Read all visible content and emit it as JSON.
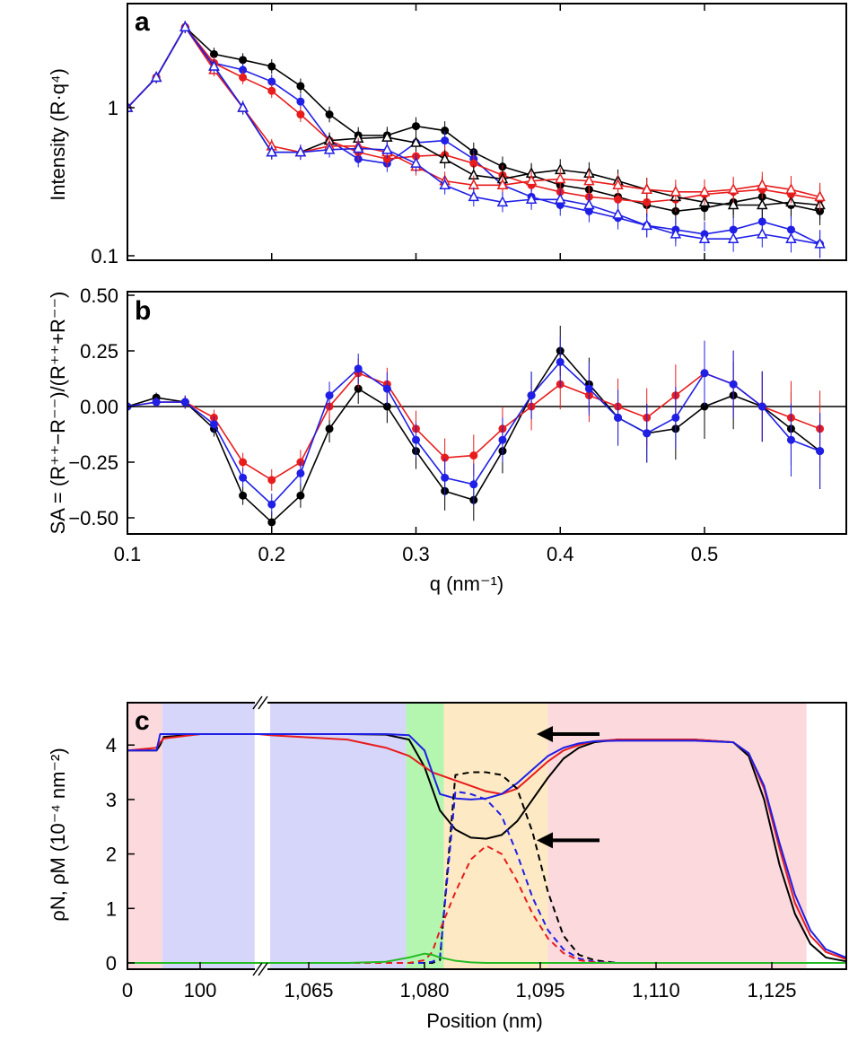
{
  "chart_data": [
    {
      "panel": "a",
      "type": "scatter",
      "ylabel": "Intensity (R·q⁴)",
      "yscale": "log",
      "ylim": [
        0.093,
        5
      ],
      "xlim": [
        0.1,
        0.6
      ],
      "yticks": [
        {
          "v": 1,
          "label": "1"
        },
        {
          "v": 0.1,
          "label": "0.1"
        }
      ],
      "x": [
        0.1,
        0.12,
        0.14,
        0.16,
        0.18,
        0.2,
        0.22,
        0.24,
        0.26,
        0.28,
        0.3,
        0.32,
        0.34,
        0.36,
        0.38,
        0.4,
        0.42,
        0.44,
        0.46,
        0.48,
        0.5,
        0.52,
        0.54,
        0.56,
        0.58
      ],
      "series": [
        {
          "marker": "circle",
          "color": "#000000",
          "values": [
            1.0,
            1.6,
            3.5,
            2.3,
            2.1,
            1.9,
            1.4,
            0.9,
            0.65,
            0.65,
            0.75,
            0.7,
            0.5,
            0.4,
            0.35,
            0.3,
            0.28,
            0.25,
            0.22,
            0.2,
            0.21,
            0.23,
            0.25,
            0.22,
            0.2
          ]
        },
        {
          "marker": "circle",
          "color": "#1f1fe6",
          "values": [
            1.0,
            1.6,
            3.5,
            2.0,
            1.8,
            1.5,
            1.1,
            0.6,
            0.45,
            0.42,
            0.58,
            0.6,
            0.45,
            0.3,
            0.25,
            0.22,
            0.2,
            0.18,
            0.16,
            0.15,
            0.14,
            0.15,
            0.17,
            0.15,
            0.12
          ]
        },
        {
          "marker": "circle",
          "color": "#e81c1c",
          "values": [
            1.0,
            1.6,
            3.5,
            2.0,
            1.6,
            1.3,
            0.9,
            0.6,
            0.5,
            0.45,
            0.47,
            0.48,
            0.42,
            0.35,
            0.3,
            0.27,
            0.25,
            0.24,
            0.23,
            0.24,
            0.26,
            0.27,
            0.28,
            0.26,
            0.24
          ]
        },
        {
          "marker": "triangle",
          "color": "#000000",
          "values": [
            1.0,
            1.6,
            3.5,
            1.9,
            1.0,
            0.5,
            0.5,
            0.6,
            0.62,
            0.63,
            0.58,
            0.45,
            0.35,
            0.33,
            0.36,
            0.38,
            0.36,
            0.32,
            0.28,
            0.25,
            0.23,
            0.22,
            0.22,
            0.23,
            0.22
          ]
        },
        {
          "marker": "triangle",
          "color": "#e81c1c",
          "values": [
            1.0,
            1.6,
            3.5,
            1.8,
            1.0,
            0.55,
            0.5,
            0.55,
            0.55,
            0.5,
            0.4,
            0.32,
            0.3,
            0.3,
            0.32,
            0.33,
            0.32,
            0.3,
            0.28,
            0.27,
            0.27,
            0.28,
            0.3,
            0.28,
            0.25
          ]
        },
        {
          "marker": "triangle",
          "color": "#1f1fe6",
          "values": [
            1.0,
            1.6,
            3.5,
            1.9,
            1.0,
            0.5,
            0.5,
            0.52,
            0.53,
            0.52,
            0.42,
            0.3,
            0.25,
            0.23,
            0.24,
            0.24,
            0.22,
            0.19,
            0.16,
            0.14,
            0.13,
            0.13,
            0.14,
            0.13,
            0.12
          ]
        }
      ]
    },
    {
      "panel": "b",
      "type": "scatter",
      "ylabel": "SA = (R⁺⁺−R⁻⁻)/(R⁺⁺+R⁻⁻)",
      "xlabel": "q (nm⁻¹)",
      "xlim": [
        0.1,
        0.6
      ],
      "ylim": [
        -0.575,
        0.51
      ],
      "xticks": [
        {
          "v": 0.1,
          "label": "0.1"
        },
        {
          "v": 0.2,
          "label": "0.2"
        },
        {
          "v": 0.3,
          "label": "0.3"
        },
        {
          "v": 0.4,
          "label": "0.4"
        },
        {
          "v": 0.5,
          "label": "0.5"
        }
      ],
      "yticks": [
        {
          "v": 0.5,
          "label": "0.50"
        },
        {
          "v": 0.25,
          "label": "0.25"
        },
        {
          "v": 0,
          "label": "0.00"
        },
        {
          "v": -0.25,
          "label": "−0.25"
        },
        {
          "v": -0.5,
          "label": "−0.50"
        }
      ],
      "x": [
        0.1,
        0.12,
        0.14,
        0.16,
        0.18,
        0.2,
        0.22,
        0.24,
        0.26,
        0.28,
        0.3,
        0.32,
        0.34,
        0.36,
        0.38,
        0.4,
        0.42,
        0.44,
        0.46,
        0.48,
        0.5,
        0.52,
        0.54,
        0.56,
        0.58
      ],
      "series": [
        {
          "color": "#000000",
          "values": [
            0,
            0.04,
            0.02,
            -0.1,
            -0.4,
            -0.52,
            -0.4,
            -0.1,
            0.08,
            0.0,
            -0.2,
            -0.38,
            -0.42,
            -0.2,
            0.05,
            0.25,
            0.1,
            -0.05,
            -0.12,
            -0.1,
            0.0,
            0.05,
            0.0,
            -0.1,
            -0.2
          ]
        },
        {
          "color": "#e81c1c",
          "values": [
            0,
            0.02,
            0.02,
            -0.05,
            -0.25,
            -0.33,
            -0.25,
            0.0,
            0.15,
            0.1,
            -0.1,
            -0.23,
            -0.22,
            -0.1,
            0.0,
            0.1,
            0.05,
            0.0,
            -0.05,
            0.05,
            0.15,
            0.1,
            0.0,
            -0.05,
            -0.1
          ]
        },
        {
          "color": "#1f1fe6",
          "values": [
            0,
            0.02,
            0.02,
            -0.08,
            -0.32,
            -0.44,
            -0.3,
            0.05,
            0.17,
            0.08,
            -0.15,
            -0.32,
            -0.35,
            -0.15,
            0.05,
            0.2,
            0.08,
            -0.05,
            -0.12,
            -0.05,
            0.15,
            0.1,
            0.0,
            -0.15,
            -0.2
          ]
        }
      ]
    },
    {
      "panel": "c",
      "type": "line",
      "ylabel": "ρN, ρM (10⁻⁴ nm⁻²)",
      "xlabel": "Position (nm)",
      "xaxis_break": [
        180,
        1060
      ],
      "ylim": [
        -0.11,
        4.78
      ],
      "xticks": [
        {
          "v": 0,
          "label": "0"
        },
        {
          "v": 100,
          "label": "100"
        },
        {
          "v": 1065,
          "label": "1,065"
        },
        {
          "v": 1080,
          "label": "1,080"
        },
        {
          "v": 1095,
          "label": "1,095"
        },
        {
          "v": 1110,
          "label": "1,110"
        },
        {
          "v": 1125,
          "label": "1,125"
        }
      ],
      "yticks": [
        {
          "v": 0,
          "label": "0"
        },
        {
          "v": 1,
          "label": "1"
        },
        {
          "v": 2,
          "label": "2"
        },
        {
          "v": 3,
          "label": "3"
        },
        {
          "v": 4,
          "label": "4"
        }
      ],
      "regions": [
        {
          "from": 0,
          "to": 48,
          "color": "#fbd9dc"
        },
        {
          "from": 48,
          "to": 175,
          "color": "#d6d6fa"
        },
        {
          "from": 1060,
          "to": 1077.6,
          "color": "#d6d6fa"
        },
        {
          "from": 1077.6,
          "to": 1082.5,
          "color": "#b4f5b0"
        },
        {
          "from": 1082.5,
          "to": 1096,
          "color": "#fdeac4"
        },
        {
          "from": 1096,
          "to": 1129.5,
          "color": "#fbd9dc"
        }
      ],
      "x": [
        0,
        40,
        45,
        50,
        100,
        180,
        1060,
        1070,
        1075,
        1078,
        1080,
        1081,
        1082,
        1084,
        1086,
        1088,
        1090,
        1092,
        1094,
        1096,
        1098,
        1100,
        1102,
        1105,
        1110,
        1115,
        1120,
        1122,
        1124,
        1126,
        1128,
        1130,
        1132,
        1134.6
      ],
      "series": [
        {
          "color": "#000000",
          "dash": false,
          "values": [
            3.9,
            3.9,
            4.0,
            4.15,
            4.2,
            4.2,
            4.2,
            4.2,
            4.19,
            4.1,
            3.6,
            3.2,
            2.8,
            2.45,
            2.3,
            2.28,
            2.35,
            2.6,
            3.0,
            3.4,
            3.75,
            3.95,
            4.05,
            4.1,
            4.1,
            4.1,
            4.05,
            3.8,
            3.0,
            1.8,
            0.9,
            0.35,
            0.1,
            0.03
          ]
        },
        {
          "color": "#e81c1c",
          "dash": false,
          "values": [
            3.9,
            3.95,
            4.05,
            4.12,
            4.2,
            4.2,
            4.18,
            4.1,
            3.95,
            3.8,
            3.6,
            3.5,
            3.45,
            3.35,
            3.25,
            3.15,
            3.1,
            3.2,
            3.45,
            3.7,
            3.9,
            4.0,
            4.07,
            4.1,
            4.1,
            4.1,
            4.05,
            3.85,
            3.2,
            2.1,
            1.1,
            0.5,
            0.2,
            0.07
          ]
        },
        {
          "color": "#1f1fe6",
          "dash": false,
          "values": [
            3.9,
            3.9,
            4.2,
            4.2,
            4.2,
            4.2,
            4.2,
            4.2,
            4.2,
            4.18,
            3.9,
            3.5,
            3.1,
            3.02,
            3.0,
            3.02,
            3.1,
            3.3,
            3.55,
            3.8,
            3.95,
            4.03,
            4.07,
            4.08,
            4.08,
            4.08,
            4.05,
            3.85,
            3.25,
            2.2,
            1.25,
            0.6,
            0.25,
            0.1
          ]
        },
        {
          "color": "#000000",
          "dash": true,
          "values": [
            0,
            0,
            0,
            0,
            0,
            0,
            0,
            0,
            0,
            0,
            0,
            0,
            0.05,
            3.45,
            3.5,
            3.5,
            3.45,
            3.2,
            2.4,
            1.3,
            0.5,
            0.15,
            0.05,
            0,
            0,
            0,
            0,
            0,
            0,
            0,
            0,
            0,
            0,
            0
          ]
        },
        {
          "color": "#1f1fe6",
          "dash": true,
          "values": [
            0,
            0,
            0,
            0,
            0,
            0,
            0,
            0,
            0,
            0,
            0,
            0.02,
            0.1,
            3.15,
            3.1,
            3.0,
            2.7,
            2.0,
            1.2,
            0.6,
            0.25,
            0.08,
            0.02,
            0,
            0,
            0,
            0,
            0,
            0,
            0,
            0,
            0,
            0,
            0
          ]
        },
        {
          "color": "#e81c1c",
          "dash": true,
          "values": [
            0,
            0,
            0,
            0,
            0,
            0,
            0,
            0,
            0,
            0,
            0.05,
            0.2,
            0.6,
            1.3,
            1.9,
            2.15,
            2.0,
            1.5,
            0.9,
            0.45,
            0.18,
            0.05,
            0.01,
            0,
            0,
            0,
            0,
            0,
            0,
            0,
            0,
            0,
            0,
            0
          ]
        },
        {
          "color": "#22bb22",
          "dash": false,
          "values": [
            0,
            0,
            0,
            0,
            0,
            0,
            0,
            0,
            0.02,
            0.1,
            0.17,
            0.15,
            0.1,
            0.04,
            0.01,
            0,
            0,
            0,
            0,
            0,
            0,
            0,
            0,
            0,
            0,
            0,
            0,
            0,
            0,
            0,
            0,
            0,
            0,
            0
          ]
        }
      ],
      "arrows": [
        {
          "y": 4.2,
          "direction": "left"
        },
        {
          "y": 2.25,
          "direction": "left"
        }
      ]
    }
  ],
  "labels": {
    "a": "a",
    "b": "b",
    "c": "c"
  }
}
